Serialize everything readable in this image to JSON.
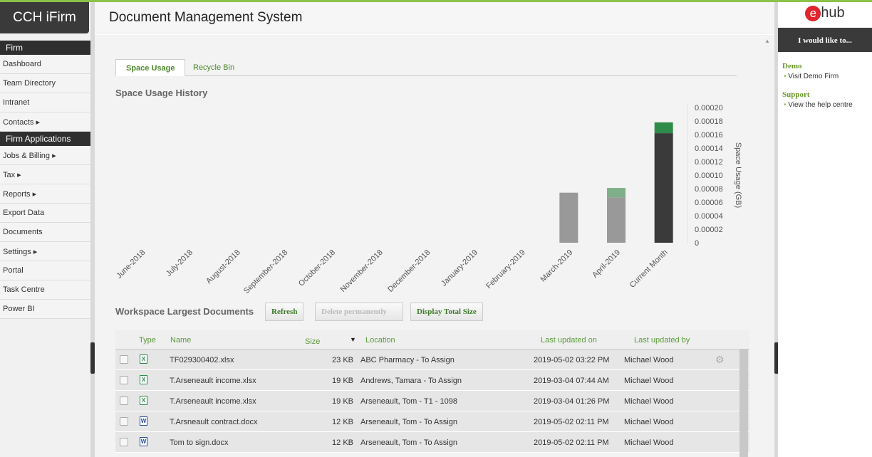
{
  "app": {
    "logo": "CCH iFirm",
    "title": "Document Management System"
  },
  "nav": {
    "sections": [
      {
        "label": "Firm",
        "items": [
          "Dashboard",
          "Team Directory",
          "Intranet",
          "Contacts ▸"
        ]
      },
      {
        "label": "Firm Applications",
        "items": [
          "Jobs & Billing ▸",
          "Tax ▸",
          "Reports ▸",
          "Export Data",
          "Documents",
          "Settings ▸",
          "Portal",
          "Task Centre",
          "Power BI"
        ]
      }
    ]
  },
  "tabs": [
    {
      "label": "Space Usage",
      "active": true
    },
    {
      "label": "Recycle Bin",
      "active": false
    }
  ],
  "chart_title": "Space Usage History",
  "chart_data": {
    "type": "bar",
    "stacked": true,
    "categories": [
      "June-2018",
      "July-2018",
      "August-2018",
      "September-2018",
      "October-2018",
      "November-2018",
      "December-2018",
      "January-2019",
      "February-2019",
      "March-2019",
      "April-2019",
      "Current Month"
    ],
    "series": [
      {
        "values": [
          0,
          0,
          0,
          0,
          0,
          0,
          0,
          0,
          0,
          7.4e-05,
          6.7e-05,
          0.000162
        ],
        "colors": [
          "#999999",
          "#999999",
          "#999999",
          "#999999",
          "#999999",
          "#999999",
          "#999999",
          "#999999",
          "#999999",
          "#999999",
          "#999999",
          "#3a3a3a"
        ]
      },
      {
        "values": [
          0,
          0,
          0,
          0,
          0,
          0,
          0,
          0,
          0,
          0,
          1.4e-05,
          1.6e-05
        ],
        "colors": [
          "#7fae8a",
          "#7fae8a",
          "#7fae8a",
          "#7fae8a",
          "#7fae8a",
          "#7fae8a",
          "#7fae8a",
          "#7fae8a",
          "#7fae8a",
          "#7fae8a",
          "#7fae8a",
          "#2e8b4a"
        ]
      }
    ],
    "ylabel": "Space Usage (GB)",
    "ylim": [
      0,
      0.0002
    ],
    "yticks": [
      "0",
      "0.00002",
      "0.00004",
      "0.00006",
      "0.00008",
      "0.00010",
      "0.00012",
      "0.00014",
      "0.00016",
      "0.00018",
      "0.00020"
    ],
    "yaxis_position": "right",
    "grid": false
  },
  "workspace": {
    "title": "Workspace Largest Documents",
    "buttons": {
      "refresh": "Refresh",
      "delete": "Delete permanently",
      "total": "Display Total Size"
    }
  },
  "table": {
    "headers": {
      "type": "Type",
      "name": "Name",
      "size": "Size",
      "sort": "▼",
      "location": "Location",
      "updated_on": "Last updated on",
      "updated_by": "Last updated by"
    },
    "rows": [
      {
        "type": "xlsx",
        "name": "TF029300402.xlsx",
        "size": "23 KB",
        "location": "ABC Pharmacy - To Assign",
        "updated_on": "2019-05-02 03:22 PM",
        "updated_by": "Michael Wood"
      },
      {
        "type": "xlsx",
        "name": "T.Arseneault income.xlsx",
        "size": "19 KB",
        "location": "Andrews, Tamara  - To Assign",
        "updated_on": "2019-03-04 07:44 AM",
        "updated_by": "Michael Wood"
      },
      {
        "type": "xlsx",
        "name": "T.Arseneault income.xlsx",
        "size": "19 KB",
        "location": "Arseneault, Tom - T1 - 1098",
        "updated_on": "2019-03-04 01:26 PM",
        "updated_by": "Michael Wood"
      },
      {
        "type": "docx",
        "name": "T.Arsneault contract.docx",
        "size": "12 KB",
        "location": "Arseneault, Tom - To Assign",
        "updated_on": "2019-05-02 02:11 PM",
        "updated_by": "Michael Wood"
      },
      {
        "type": "docx",
        "name": "Tom to sign.docx",
        "size": "12 KB",
        "location": "Arseneault, Tom - To Assign",
        "updated_on": "2019-05-02 02:11 PM",
        "updated_by": "Michael Wood"
      }
    ]
  },
  "right": {
    "brand_e": "e",
    "brand_rest": "hub",
    "cta": "I would like to...",
    "sections": [
      {
        "label": "Demo",
        "links": [
          "Visit Demo Firm"
        ]
      },
      {
        "label": "Support",
        "links": [
          "View the help centre"
        ]
      }
    ]
  }
}
